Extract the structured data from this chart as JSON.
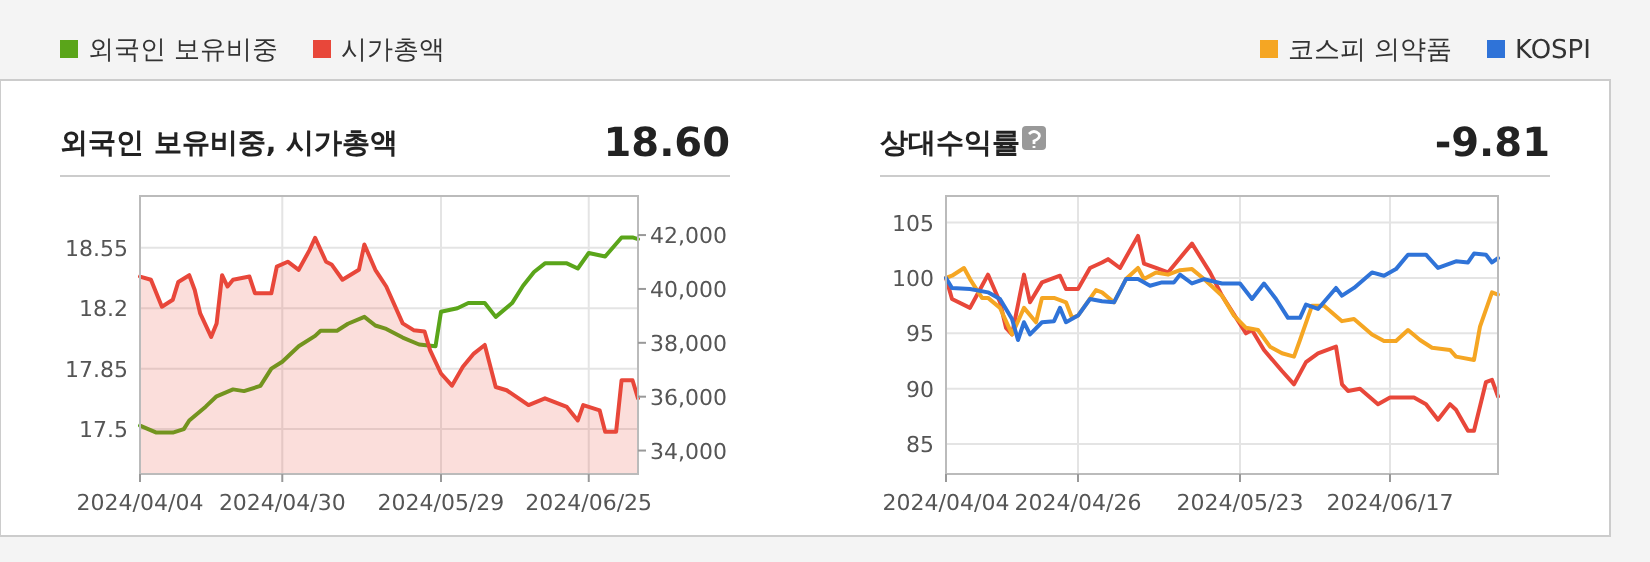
{
  "chart_data": [
    {
      "type": "line",
      "title": "외국인 보유비중, 시가총액",
      "annotations": [
        "18.60"
      ],
      "legend": "top left",
      "grid": true,
      "xlim": [
        "2024-04-04",
        "2024-07-04"
      ],
      "xticks": [
        {
          "value": "2024-04-04",
          "label": "2024/04/04"
        },
        {
          "value": "2024-04-30",
          "label": "2024/04/30"
        },
        {
          "value": "2024-05-29",
          "label": "2024/05/29"
        },
        {
          "value": "2024-06-25",
          "label": "2024/06/25"
        }
      ],
      "ylim": [
        17.24,
        18.85
      ],
      "yticks": [
        17.5,
        17.85,
        18.2,
        18.55
      ],
      "y2lim": [
        33130,
        43450
      ],
      "y2ticks": [
        {
          "value": 34000,
          "label": "34,000"
        },
        {
          "value": 36000,
          "label": "36,000"
        },
        {
          "value": 38000,
          "label": "38,000"
        },
        {
          "value": 40000,
          "label": "40,000"
        },
        {
          "value": 42000,
          "label": "42,000"
        }
      ],
      "series": [
        {
          "name": "외국인 보유비중",
          "color": "#5aa51a",
          "x": [
            "2024-04-04",
            "2024-04-07",
            "2024-04-10",
            "2024-04-12",
            "2024-04-13",
            "2024-04-16",
            "2024-04-18",
            "2024-04-21",
            "2024-04-23",
            "2024-04-26",
            "2024-04-28",
            "2024-04-30",
            "2024-05-03",
            "2024-05-06",
            "2024-05-07",
            "2024-05-10",
            "2024-05-12",
            "2024-05-15",
            "2024-05-17",
            "2024-05-19",
            "2024-05-22",
            "2024-05-25",
            "2024-05-28",
            "2024-05-29",
            "2024-06-01",
            "2024-06-03",
            "2024-06-06",
            "2024-06-08",
            "2024-06-11",
            "2024-06-13",
            "2024-06-15",
            "2024-06-17",
            "2024-06-21",
            "2024-06-23",
            "2024-06-25",
            "2024-06-28",
            "2024-07-01",
            "2024-07-03",
            "2024-07-04"
          ],
          "values": [
            17.52,
            17.48,
            17.48,
            17.5,
            17.55,
            17.63,
            17.69,
            17.73,
            17.72,
            17.75,
            17.85,
            17.89,
            17.98,
            18.04,
            18.07,
            18.07,
            18.11,
            18.15,
            18.1,
            18.08,
            18.03,
            17.99,
            17.98,
            18.18,
            18.2,
            18.23,
            18.23,
            18.15,
            18.23,
            18.33,
            18.41,
            18.46,
            18.46,
            18.43,
            18.52,
            18.5,
            18.61,
            18.61,
            18.6
          ]
        },
        {
          "name": "시가총액",
          "type": "area",
          "axis": "y2",
          "color": "#e8473a",
          "x": [
            "2024-04-04",
            "2024-04-06",
            "2024-04-08",
            "2024-04-10",
            "2024-04-11",
            "2024-04-13",
            "2024-04-14",
            "2024-04-15",
            "2024-04-17",
            "2024-04-18",
            "2024-04-19",
            "2024-04-20",
            "2024-04-21",
            "2024-04-24",
            "2024-04-25",
            "2024-04-28",
            "2024-04-29",
            "2024-05-01",
            "2024-05-03",
            "2024-05-05",
            "2024-05-06",
            "2024-05-08",
            "2024-05-09",
            "2024-05-11",
            "2024-05-14",
            "2024-05-15",
            "2024-05-17",
            "2024-05-19",
            "2024-05-22",
            "2024-05-24",
            "2024-05-26",
            "2024-05-27",
            "2024-05-29",
            "2024-05-31",
            "2024-06-02",
            "2024-06-04",
            "2024-06-06",
            "2024-06-08",
            "2024-06-10",
            "2024-06-14",
            "2024-06-17",
            "2024-06-21",
            "2024-06-23",
            "2024-06-24",
            "2024-06-27",
            "2024-06-28",
            "2024-06-30",
            "2024-07-01",
            "2024-07-03",
            "2024-07-04"
          ],
          "values": [
            40460,
            40340,
            39340,
            39600,
            40260,
            40510,
            39960,
            39090,
            38220,
            38720,
            40510,
            40090,
            40340,
            40460,
            39840,
            39840,
            40830,
            41010,
            40710,
            41450,
            41900,
            41010,
            40910,
            40340,
            40710,
            41650,
            40710,
            40090,
            38720,
            38470,
            38420,
            37730,
            36860,
            36410,
            37110,
            37600,
            37920,
            36360,
            36240,
            35690,
            35940,
            35620,
            35120,
            35690,
            35490,
            34700,
            34700,
            36610,
            36610,
            35940
          ]
        }
      ]
    },
    {
      "type": "line",
      "title": "상대수익률",
      "annotations": [
        "-9.81"
      ],
      "legend": "top right",
      "grid": true,
      "xlim": [
        "2024-04-04",
        "2024-07-05"
      ],
      "xticks": [
        {
          "value": "2024-04-04",
          "label": "2024/04/04"
        },
        {
          "value": "2024-04-26",
          "label": "2024/04/26"
        },
        {
          "value": "2024-05-23",
          "label": "2024/05/23"
        },
        {
          "value": "2024-06-17",
          "label": "2024/06/17"
        }
      ],
      "ylim": [
        82.3,
        107.4
      ],
      "yticks": [
        85,
        90,
        95,
        100,
        105
      ],
      "series": [
        {
          "color": "#e8473a",
          "x": [
            "2024-04-04",
            "2024-04-05",
            "2024-04-08",
            "2024-04-10",
            "2024-04-11",
            "2024-04-13",
            "2024-04-14",
            "2024-04-15",
            "2024-04-17",
            "2024-04-18",
            "2024-04-20",
            "2024-04-23",
            "2024-04-24",
            "2024-04-26",
            "2024-04-28",
            "2024-04-30",
            "2024-05-01",
            "2024-05-03",
            "2024-05-06",
            "2024-05-07",
            "2024-05-09",
            "2024-05-11",
            "2024-05-15",
            "2024-05-18",
            "2024-05-20",
            "2024-05-24",
            "2024-05-25",
            "2024-05-27",
            "2024-05-30",
            "2024-06-01",
            "2024-06-03",
            "2024-06-05",
            "2024-06-08",
            "2024-06-09",
            "2024-06-10",
            "2024-06-12",
            "2024-06-15",
            "2024-06-17",
            "2024-06-21",
            "2024-06-23",
            "2024-06-25",
            "2024-06-27",
            "2024-06-28",
            "2024-06-30",
            "2024-07-01",
            "2024-07-03",
            "2024-07-04",
            "2024-07-05"
          ],
          "values": [
            100,
            98.1,
            97.3,
            99.3,
            100.3,
            97.8,
            95.5,
            94.9,
            100.3,
            97.8,
            99.6,
            100.2,
            99,
            99,
            100.9,
            101.4,
            101.7,
            100.9,
            103.8,
            101.3,
            100.9,
            100.5,
            103.1,
            100.5,
            98.4,
            95,
            95.3,
            93.5,
            91.6,
            90.4,
            92.4,
            93.2,
            93.8,
            90.4,
            89.8,
            90,
            88.6,
            89.2,
            89.2,
            88.6,
            87.2,
            88.6,
            88.1,
            86.2,
            86.2,
            90.6,
            90.8,
            89.3
          ]
        },
        {
          "name": "코스피 의약품",
          "color": "#f5a623",
          "x": [
            "2024-04-04",
            "2024-04-05",
            "2024-04-07",
            "2024-04-08",
            "2024-04-10",
            "2024-04-11",
            "2024-04-13",
            "2024-04-15",
            "2024-04-17",
            "2024-04-19",
            "2024-04-20",
            "2024-04-22",
            "2024-04-24",
            "2024-04-25",
            "2024-04-26",
            "2024-04-29",
            "2024-04-30",
            "2024-05-02",
            "2024-05-04",
            "2024-05-06",
            "2024-05-07",
            "2024-05-09",
            "2024-05-11",
            "2024-05-13",
            "2024-05-15",
            "2024-05-17",
            "2024-05-20",
            "2024-05-22",
            "2024-05-24",
            "2024-05-26",
            "2024-05-28",
            "2024-05-30",
            "2024-06-01",
            "2024-06-02",
            "2024-06-04",
            "2024-06-06",
            "2024-06-09",
            "2024-06-11",
            "2024-06-14",
            "2024-06-16",
            "2024-06-18",
            "2024-06-20",
            "2024-06-22",
            "2024-06-24",
            "2024-06-27",
            "2024-06-28",
            "2024-07-01",
            "2024-07-02",
            "2024-07-04",
            "2024-07-05"
          ],
          "values": [
            100,
            100.2,
            100.9,
            99.9,
            98.2,
            98.2,
            97.3,
            94.9,
            97.3,
            96,
            98.2,
            98.2,
            97.8,
            96.4,
            96.6,
            98.9,
            98.7,
            97.8,
            99.9,
            100.9,
            99.9,
            100.5,
            100.3,
            100.7,
            100.8,
            99.9,
            98.4,
            96.6,
            95.5,
            95.3,
            93.8,
            93.2,
            92.9,
            94.4,
            97.5,
            97.5,
            96.1,
            96.3,
            94.9,
            94.3,
            94.3,
            95.3,
            94.4,
            93.7,
            93.5,
            92.9,
            92.6,
            95.6,
            98.7,
            98.5
          ]
        },
        {
          "name": "KOSPI",
          "color": "#2f73d8",
          "x": [
            "2024-04-04",
            "2024-04-05",
            "2024-04-08",
            "2024-04-11",
            "2024-04-13",
            "2024-04-15",
            "2024-04-16",
            "2024-04-17",
            "2024-04-18",
            "2024-04-20",
            "2024-04-22",
            "2024-04-23",
            "2024-04-24",
            "2024-04-26",
            "2024-04-28",
            "2024-04-30",
            "2024-05-02",
            "2024-05-04",
            "2024-05-06",
            "2024-05-08",
            "2024-05-10",
            "2024-05-12",
            "2024-05-13",
            "2024-05-15",
            "2024-05-17",
            "2024-05-20",
            "2024-05-23",
            "2024-05-25",
            "2024-05-27",
            "2024-05-29",
            "2024-05-31",
            "2024-06-02",
            "2024-06-03",
            "2024-06-05",
            "2024-06-08",
            "2024-06-09",
            "2024-06-11",
            "2024-06-14",
            "2024-06-16",
            "2024-06-18",
            "2024-06-20",
            "2024-06-23",
            "2024-06-25",
            "2024-06-28",
            "2024-06-30",
            "2024-07-01",
            "2024-07-03",
            "2024-07-04",
            "2024-07-05"
          ],
          "values": [
            100,
            99.1,
            99,
            98.7,
            98.1,
            96.3,
            94.4,
            96,
            94.9,
            96,
            96.1,
            97.3,
            96,
            96.6,
            98.1,
            97.9,
            97.8,
            99.9,
            99.9,
            99.3,
            99.6,
            99.6,
            100.3,
            99.5,
            99.9,
            99.5,
            99.5,
            98.1,
            99.5,
            98.1,
            96.4,
            96.4,
            97.6,
            97.2,
            99.1,
            98.4,
            99.1,
            100.5,
            100.2,
            100.8,
            102.1,
            102.1,
            100.9,
            101.5,
            101.4,
            102.2,
            102.1,
            101.4,
            101.8
          ]
        }
      ]
    }
  ]
}
